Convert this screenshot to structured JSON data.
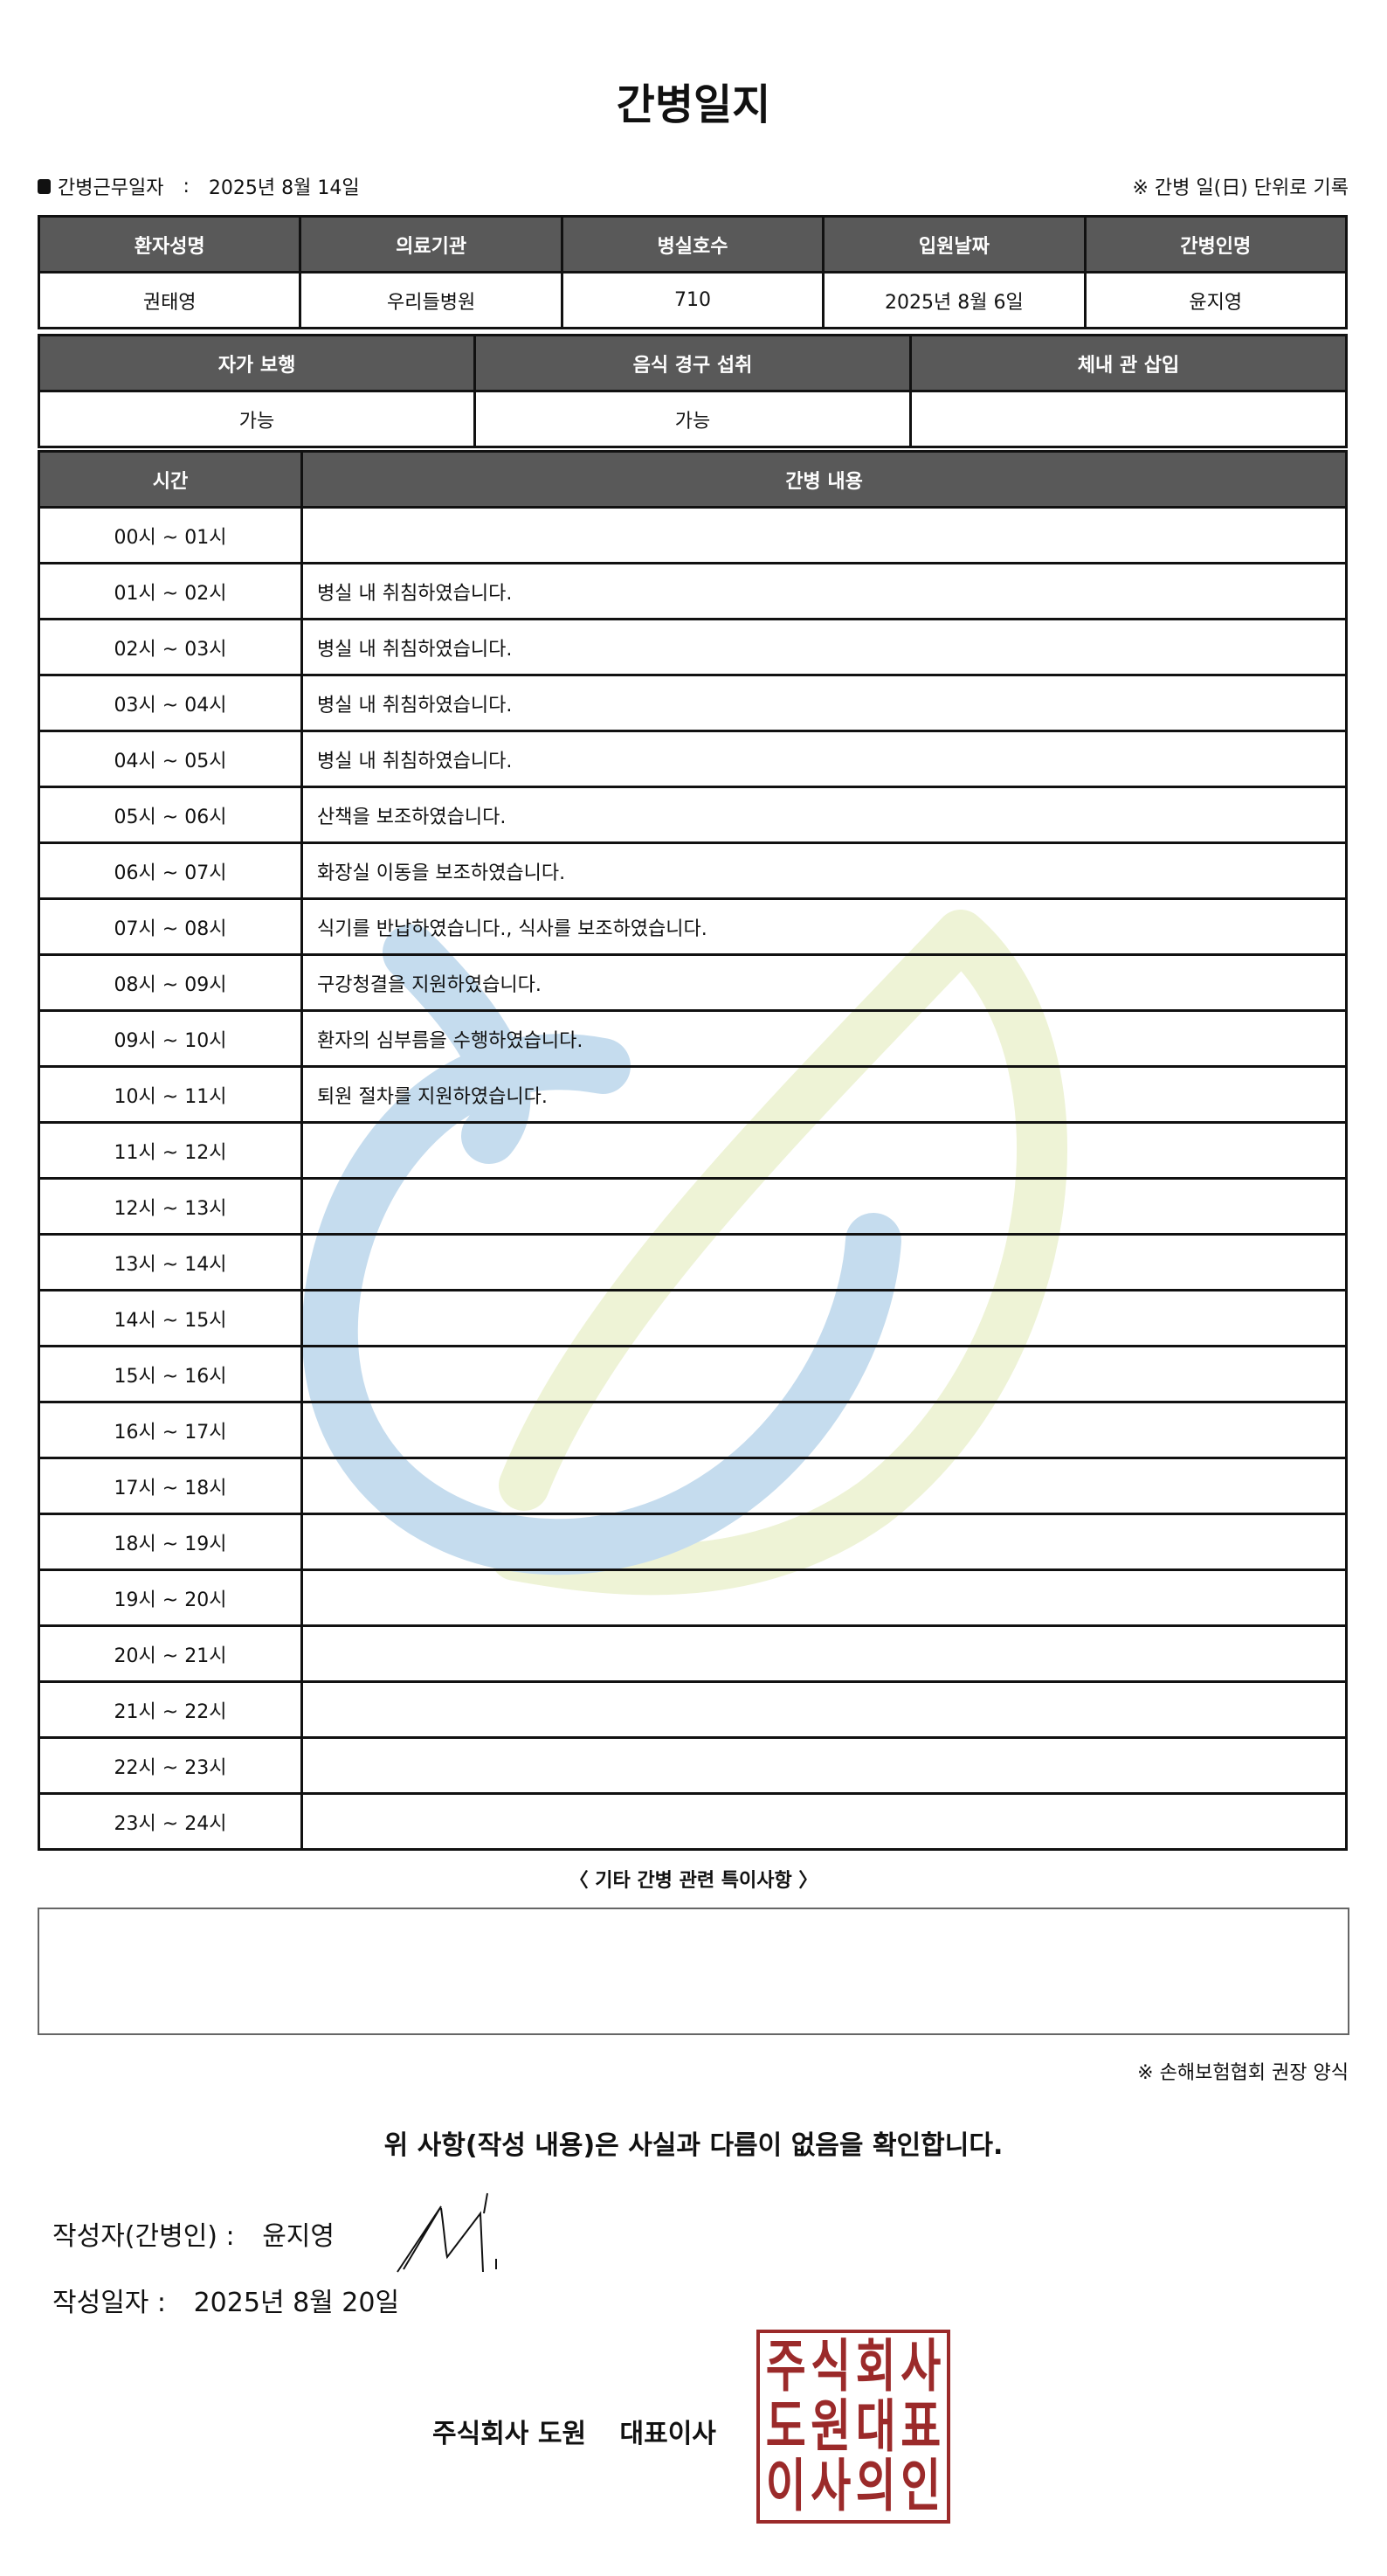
{
  "title": "간병일지",
  "duty_date_label": "간병근무일자",
  "duty_date_sep": ":",
  "duty_date": "2025년 8월 14일",
  "record_note": "※ 간병 일(日) 단위로 기록",
  "info": {
    "headers": [
      "환자성명",
      "의료기관",
      "병실호수",
      "입원날짜",
      "간병인명"
    ],
    "values": [
      "권태영",
      "우리들병원",
      "710",
      "2025년 8월 6일",
      "윤지영"
    ]
  },
  "status": {
    "headers": [
      "자가 보행",
      "음식 경구 섭취",
      "체내 관 삽입"
    ],
    "values": [
      "가능",
      "가능",
      ""
    ]
  },
  "log": {
    "headers": [
      "시간",
      "간병 내용"
    ],
    "rows": [
      {
        "time": "00시 ~ 01시",
        "content": ""
      },
      {
        "time": "01시 ~ 02시",
        "content": "병실 내 취침하였습니다."
      },
      {
        "time": "02시 ~ 03시",
        "content": "병실 내 취침하였습니다."
      },
      {
        "time": "03시 ~ 04시",
        "content": "병실 내 취침하였습니다."
      },
      {
        "time": "04시 ~ 05시",
        "content": "병실 내 취침하였습니다."
      },
      {
        "time": "05시 ~ 06시",
        "content": "산책을 보조하였습니다."
      },
      {
        "time": "06시 ~ 07시",
        "content": "화장실 이동을 보조하였습니다."
      },
      {
        "time": "07시 ~ 08시",
        "content": "식기를 반납하였습니다., 식사를 보조하였습니다."
      },
      {
        "time": "08시 ~ 09시",
        "content": "구강청결을 지원하였습니다."
      },
      {
        "time": "09시 ~ 10시",
        "content": "환자의 심부름을 수행하였습니다."
      },
      {
        "time": "10시 ~ 11시",
        "content": "퇴원 절차를 지원하였습니다."
      },
      {
        "time": "11시 ~ 12시",
        "content": ""
      },
      {
        "time": "12시 ~ 13시",
        "content": ""
      },
      {
        "time": "13시 ~ 14시",
        "content": ""
      },
      {
        "time": "14시 ~ 15시",
        "content": ""
      },
      {
        "time": "15시 ~ 16시",
        "content": ""
      },
      {
        "time": "16시 ~ 17시",
        "content": ""
      },
      {
        "time": "17시 ~ 18시",
        "content": ""
      },
      {
        "time": "18시 ~ 19시",
        "content": ""
      },
      {
        "time": "19시 ~ 20시",
        "content": ""
      },
      {
        "time": "20시 ~ 21시",
        "content": ""
      },
      {
        "time": "21시 ~ 22시",
        "content": ""
      },
      {
        "time": "22시 ~ 23시",
        "content": ""
      },
      {
        "time": "23시 ~ 24시",
        "content": ""
      }
    ]
  },
  "notes_title": "〈 기타 간병 관련 특이사항 〉",
  "notes": "",
  "form_note": "※ 손해보험협회 권장 양식",
  "confirm": "위 사항(작성 내용)은 사실과 다름이 없음을 확인합니다.",
  "writer_label": "작성자(간병인) :",
  "writer": "윤지영",
  "write_date_label": "작성일자 :",
  "write_date": "2025년 8월 20일",
  "company": "주식회사 도원",
  "ceo_label": "대표이사",
  "stamp_text": "주식회사도원대표이사의인",
  "colors": {
    "header": "#595959",
    "stamp": "#9b2a2a",
    "watermark_blue": "#c5dcee",
    "watermark_green": "#eef3d6"
  }
}
